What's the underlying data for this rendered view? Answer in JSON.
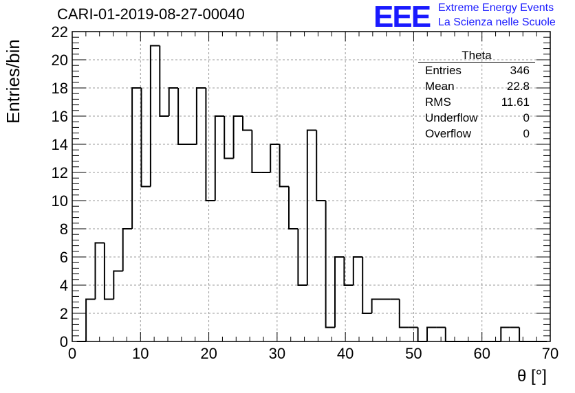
{
  "title": "CARI-01-2019-08-27-00040",
  "logo": {
    "mark": "EEE",
    "line1": "Extreme Energy Events",
    "line2": "La Scienza nelle Scuole"
  },
  "stats": {
    "name": "Theta",
    "rows": [
      {
        "label": "Entries",
        "value": "346"
      },
      {
        "label": "Mean",
        "value": "22.8"
      },
      {
        "label": "RMS",
        "value": "11.61"
      },
      {
        "label": "Underflow",
        "value": "0"
      },
      {
        "label": "Overflow",
        "value": "0"
      }
    ]
  },
  "colors": {
    "line": "#000000",
    "grid": "#9a9a9a",
    "logo": "#1a1aff"
  },
  "chart_data": {
    "type": "bar",
    "histogram": true,
    "xlabel": "θ [°]",
    "ylabel": "Entries/bin",
    "xlim": [
      0,
      70
    ],
    "ylim": [
      0,
      22
    ],
    "x_ticks": [
      "0",
      "10",
      "20",
      "30",
      "40",
      "50",
      "60",
      "70"
    ],
    "y_ticks": [
      "0",
      "2",
      "4",
      "6",
      "8",
      "10",
      "12",
      "14",
      "16",
      "18",
      "20",
      "22"
    ],
    "grid": true,
    "legend": "top-right",
    "bin_width": 1.35,
    "bin_start": 0.675,
    "values": [
      0,
      3,
      7,
      3,
      5,
      8,
      18,
      11,
      21,
      16,
      18,
      14,
      14,
      18,
      10,
      16,
      13,
      16,
      15,
      12,
      12,
      14,
      11,
      8,
      4,
      15,
      10,
      1,
      6,
      4,
      6,
      2,
      3,
      3,
      3,
      1,
      1,
      0,
      1,
      1,
      0,
      0,
      0,
      0,
      0,
      0,
      1,
      1,
      0,
      0,
      0
    ]
  }
}
